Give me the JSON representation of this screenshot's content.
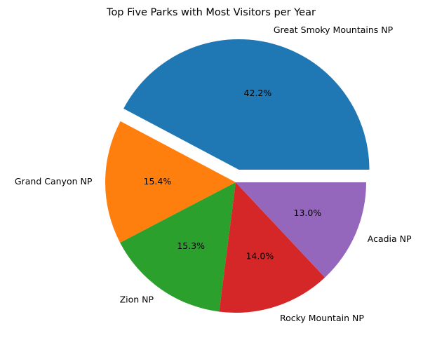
{
  "chart_data": {
    "type": "pie",
    "title": "Top Five Parks with Most Visitors per Year",
    "labels": [
      "Great Smoky Mountains NP",
      "Grand Canyon NP",
      "Zion NP",
      "Rocky Mountain NP",
      "Acadia NP"
    ],
    "values": [
      42.2,
      15.4,
      15.3,
      14.0,
      13.0
    ],
    "autopct": [
      "42.2%",
      "15.4%",
      "15.3%",
      "14.0%",
      "13.0%"
    ],
    "explode": [
      0.1,
      0,
      0,
      0,
      0
    ],
    "colors": [
      "#1f77b4",
      "#ff7f0e",
      "#2ca02c",
      "#d62728",
      "#9467bd"
    ],
    "start_angle_deg": 0,
    "direction": "counterclockwise"
  }
}
